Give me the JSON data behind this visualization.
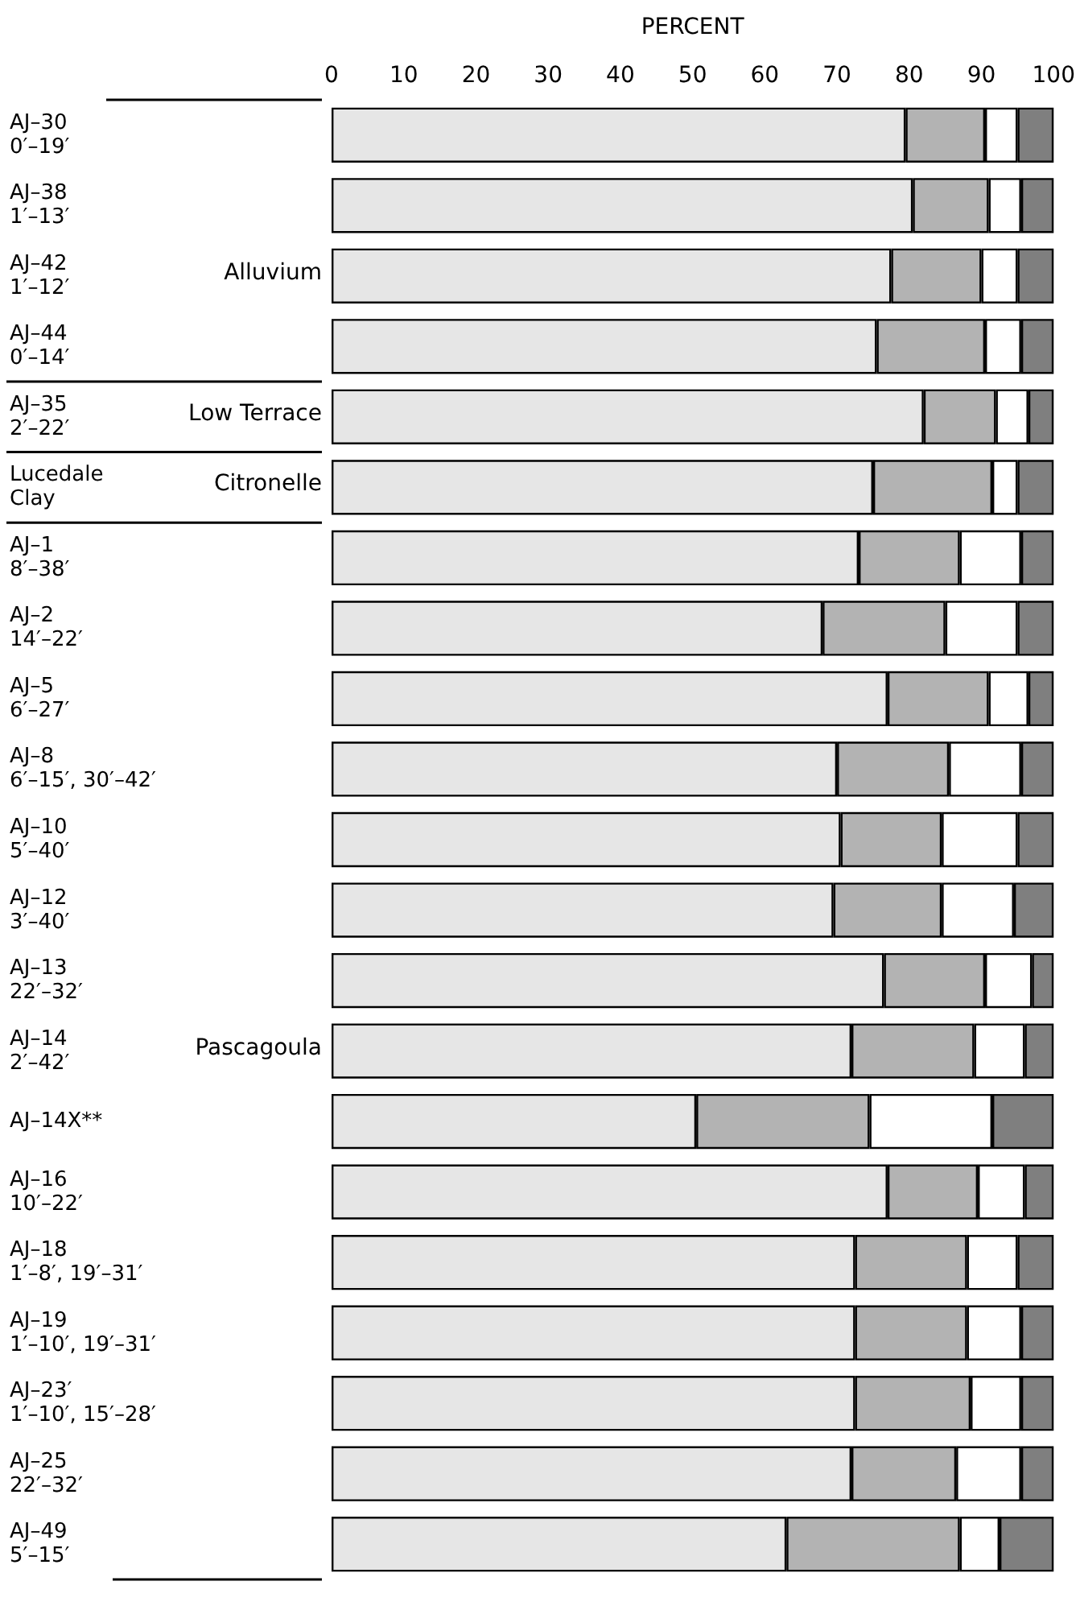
{
  "chart_data": {
    "type": "bar",
    "orientation": "horizontal",
    "stacked": true,
    "xlabel": "PERCENT",
    "categories": [
      "AJ–30\n0′–19′",
      "AJ–38\n1′–13′",
      "AJ–42\n1′–12′",
      "AJ–44\n0′–14′",
      "AJ–35\n2′–22′",
      "Lucedale\nClay",
      "AJ–1\n8′–38′",
      "AJ–2\n14′–22′",
      "AJ–5\n6′–27′",
      "AJ–8\n6′–15′, 30′–42′",
      "AJ–10\n5′–40′",
      "AJ–12\n3′–40′",
      "AJ–13\n22′–32′",
      "AJ–14\n2′–42′",
      "AJ–14X**",
      "AJ–16\n10′–22′",
      "AJ–18\n1′–8′, 19′–31′",
      "AJ–19\n1′–10′, 19′–31′",
      "AJ–23′\n1′–10′, 15′–28′",
      "AJ–25\n22′–32′",
      "AJ–49\n5′–15′"
    ],
    "series": [
      {
        "color": "#e6e6e6",
        "values": [
          79.5,
          80.5,
          77.5,
          75.5,
          82,
          75,
          73,
          68,
          77,
          70,
          70.5,
          69.5,
          76.5,
          72,
          50.5,
          77,
          72.5,
          72.5,
          72.5,
          72,
          63
        ]
      },
      {
        "color": "#b3b3b3",
        "values": [
          11,
          10.5,
          12.5,
          15,
          10,
          16.5,
          14,
          17,
          14,
          15.5,
          14,
          15,
          14,
          17,
          24,
          12.5,
          15.5,
          15.5,
          16,
          14.5,
          24
        ]
      },
      {
        "color": "#ffffff",
        "values": [
          4.5,
          4.5,
          5,
          5,
          4.5,
          3.5,
          8.5,
          10,
          5.5,
          10,
          10.5,
          10,
          6.5,
          7,
          17,
          6.5,
          7,
          7.5,
          7,
          9,
          5.5
        ]
      },
      {
        "color": "#7f7f7f",
        "values": [
          5,
          4.5,
          5,
          4.5,
          3.5,
          5,
          4.5,
          5,
          3.5,
          4.5,
          5,
          5.5,
          3,
          4,
          8.5,
          4,
          5,
          4.5,
          4.5,
          4.5,
          7.5
        ]
      }
    ],
    "xlim": [
      0,
      100
    ],
    "xticks": [
      0,
      10,
      20,
      30,
      40,
      50,
      60,
      70,
      80,
      90,
      100
    ],
    "grid": false,
    "legend": false,
    "annotations": [
      "Alluvium",
      "Low Terrace",
      "Citronelle",
      "Pascagoula"
    ]
  }
}
